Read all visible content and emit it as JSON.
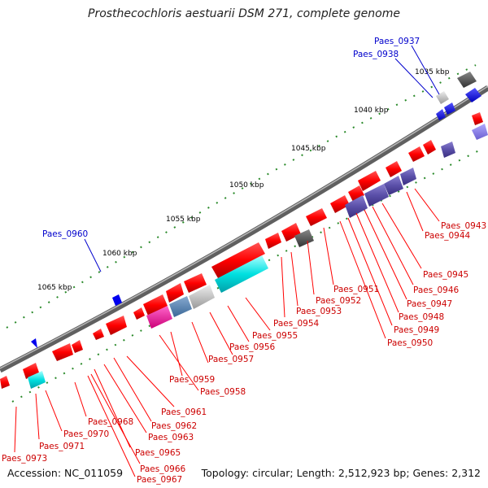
{
  "title": "Prosthecochloris aestuarii DSM 271, complete genome",
  "accession": "Accession: NC_011059",
  "topology": "Topology: circular; Length: 2,512,923 bp; Genes: 2,312",
  "kbp_ticks": [
    "1035 kbp",
    "1040 kbp",
    "1045 kbp",
    "1050 kbp",
    "1055 kbp",
    "1060 kbp",
    "1065 kbp"
  ],
  "highlight_color": "#0000cc",
  "label_color": "#ff0000",
  "highlighted_genes": [
    "Paes_0937",
    "Paes_0938",
    "Paes_0960"
  ],
  "gene_labels": [
    "Paes_0943",
    "Paes_0944",
    "Paes_0945",
    "Paes_0946",
    "Paes_0947",
    "Paes_0948",
    "Paes_0949",
    "Paes_0950",
    "Paes_0951",
    "Paes_0952",
    "Paes_0953",
    "Paes_0954",
    "Paes_0955",
    "Paes_0956",
    "Paes_0957",
    "Paes_0958",
    "Paes_0959",
    "Paes_0961",
    "Paes_0962",
    "Paes_0963",
    "Paes_0965",
    "Paes_0966",
    "Paes_0967",
    "Paes_0968",
    "Paes_0970",
    "Paes_0971",
    "Paes_0973"
  ]
}
